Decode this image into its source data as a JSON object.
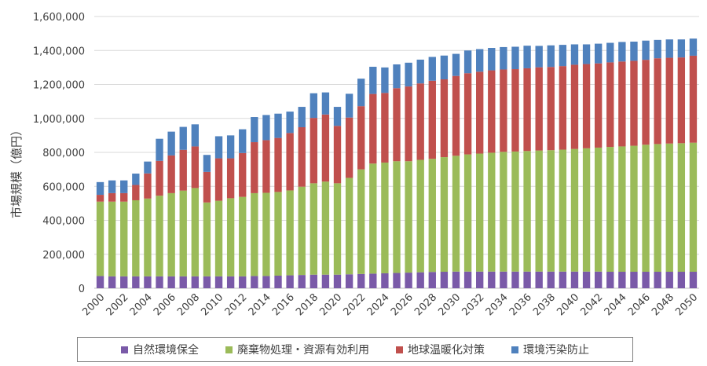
{
  "chart_data": {
    "type": "bar",
    "stacked": true,
    "title": "",
    "xlabel": "",
    "ylabel": "市場規模（億円）",
    "ylim": [
      0,
      1600000
    ],
    "yticks": [
      "0",
      "200,000",
      "400,000",
      "600,000",
      "800,000",
      "1,000,000",
      "1,200,000",
      "1,400,000",
      "1,600,000"
    ],
    "grid": true,
    "legend_position": "bottom",
    "categories": [
      "2000",
      "2001",
      "2002",
      "2003",
      "2004",
      "2005",
      "2006",
      "2007",
      "2008",
      "2009",
      "2010",
      "2011",
      "2012",
      "2013",
      "2014",
      "2015",
      "2016",
      "2017",
      "2018",
      "2019",
      "2020",
      "2021",
      "2022",
      "2023",
      "2024",
      "2025",
      "2026",
      "2027",
      "2028",
      "2029",
      "2030",
      "2031",
      "2032",
      "2033",
      "2034",
      "2035",
      "2036",
      "2037",
      "2038",
      "2039",
      "2040",
      "2041",
      "2042",
      "2043",
      "2044",
      "2045",
      "2046",
      "2047",
      "2048",
      "2049",
      "2050"
    ],
    "xtick_labels": [
      "2000",
      "2002",
      "2004",
      "2006",
      "2008",
      "2010",
      "2012",
      "2014",
      "2016",
      "2018",
      "2020",
      "2022",
      "2024",
      "2026",
      "2028",
      "2030",
      "2032",
      "2034",
      "2036",
      "2038",
      "2040",
      "2042",
      "2044",
      "2046",
      "2048",
      "2050"
    ],
    "series": [
      {
        "name": "自然環境保全",
        "color": "#7a5aa8",
        "values": [
          72000,
          70000,
          70000,
          70000,
          70000,
          70000,
          70000,
          70000,
          70000,
          70000,
          70000,
          70000,
          70000,
          72000,
          72000,
          74000,
          76000,
          78000,
          80000,
          80000,
          80000,
          82000,
          84000,
          86000,
          88000,
          90000,
          92000,
          94000,
          96000,
          97000,
          98000,
          98000,
          98000,
          98000,
          98000,
          98000,
          98000,
          98000,
          98000,
          98000,
          98000,
          98000,
          98000,
          97000,
          97000,
          97000,
          97000,
          97000,
          97000,
          97000,
          97000
        ]
      },
      {
        "name": "廃棄物処理・資源有効利用",
        "color": "#9bbb59",
        "values": [
          438000,
          440000,
          440000,
          448000,
          458000,
          475000,
          490000,
          505000,
          520000,
          435000,
          445000,
          460000,
          468000,
          488000,
          490000,
          493000,
          500000,
          520000,
          538000,
          548000,
          538000,
          568000,
          616000,
          648000,
          652000,
          658000,
          656000,
          662000,
          666000,
          675000,
          682000,
          690000,
          695000,
          700000,
          705000,
          707000,
          710000,
          713000,
          715000,
          718000,
          722000,
          726000,
          730000,
          735000,
          738000,
          742000,
          748000,
          752000,
          755000,
          757000,
          760000
        ]
      },
      {
        "name": "地球温暖化対策",
        "color": "#c0504d",
        "values": [
          40000,
          50000,
          50000,
          90000,
          148000,
          205000,
          222000,
          240000,
          245000,
          180000,
          250000,
          235000,
          258000,
          300000,
          310000,
          318000,
          338000,
          350000,
          385000,
          395000,
          338000,
          355000,
          372000,
          410000,
          410000,
          430000,
          440000,
          450000,
          460000,
          458000,
          470000,
          478000,
          482000,
          485000,
          485000,
          485000,
          487000,
          490000,
          490000,
          492000,
          496000,
          496000,
          496000,
          498000,
          500000,
          500000,
          500000,
          505000,
          505000,
          505000,
          512000
        ]
      },
      {
        "name": "環境汚染防止",
        "color": "#4f81bd",
        "values": [
          75000,
          75000,
          75000,
          67000,
          70000,
          130000,
          140000,
          135000,
          130000,
          100000,
          130000,
          135000,
          140000,
          148000,
          148000,
          143000,
          126000,
          120000,
          145000,
          130000,
          112000,
          140000,
          162000,
          160000,
          150000,
          140000,
          140000,
          140000,
          140000,
          140000,
          130000,
          134000,
          133000,
          132000,
          132000,
          132000,
          133000,
          126000,
          127000,
          125000,
          120000,
          116000,
          116000,
          115000,
          115000,
          113000,
          113000,
          108000,
          108000,
          106000,
          101000
        ]
      }
    ]
  }
}
